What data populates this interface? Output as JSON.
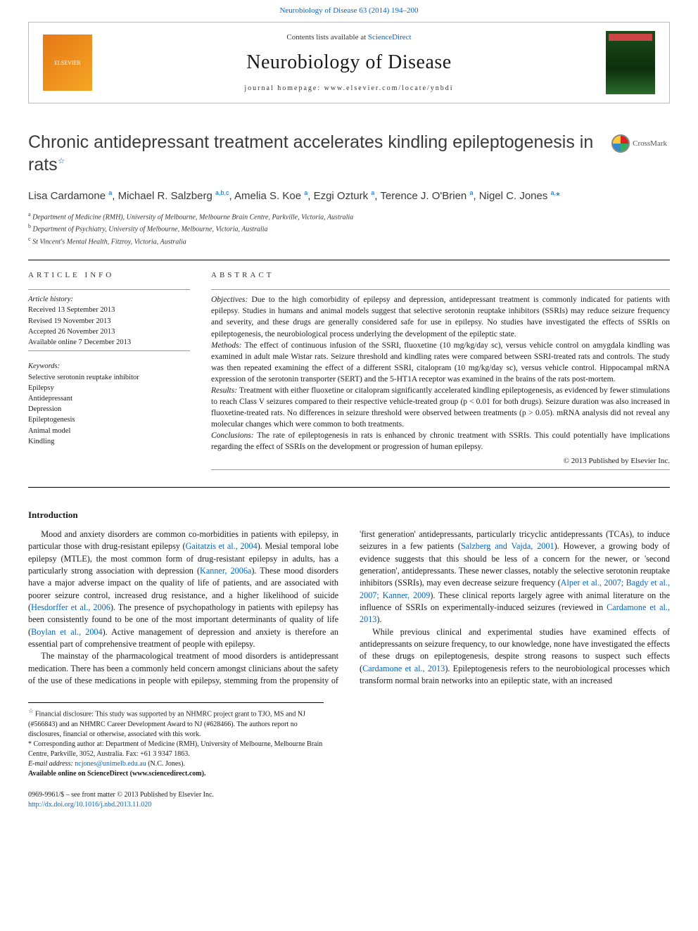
{
  "header": {
    "citation": "Neurobiology of Disease 63 (2014) 194–200",
    "contents_prefix": "Contents lists available at ",
    "contents_link": "ScienceDirect",
    "journal_name": "Neurobiology of Disease",
    "homepage_label": "journal homepage: www.elsevier.com/locate/ynbdi"
  },
  "title": "Chronic antidepressant treatment accelerates kindling epileptogenesis in rats",
  "title_note_marker": "☆",
  "crossmark_label": "CrossMark",
  "authors_html": "Lisa Cardamone <sup>a</sup>, Michael R. Salzberg <sup>a,b,c</sup>, Amelia S. Koe <sup>a</sup>, Ezgi Ozturk <sup>a</sup>, Terence J. O'Brien <sup>a</sup>, Nigel C. Jones <sup>a,</sup><span class='corr'>*</span>",
  "affiliations": [
    "a  Department of Medicine (RMH), University of Melbourne, Melbourne Brain Centre, Parkville, Victoria, Australia",
    "b  Department of Psychiatry, University of Melbourne, Melbourne, Victoria, Australia",
    "c  St Vincent's Mental Health, Fitzroy, Victoria, Australia"
  ],
  "article_info": {
    "label": "ARTICLE INFO",
    "history_label": "Article history:",
    "received": "Received 13 September 2013",
    "revised": "Revised 19 November 2013",
    "accepted": "Accepted 26 November 2013",
    "online": "Available online 7 December 2013",
    "keywords_label": "Keywords:",
    "keywords": [
      "Selective serotonin reuptake inhibitor",
      "Epilepsy",
      "Antidepressant",
      "Depression",
      "Epileptogenesis",
      "Animal model",
      "Kindling"
    ]
  },
  "abstract": {
    "label": "ABSTRACT",
    "objectives_label": "Objectives:",
    "objectives": "Due to the high comorbidity of epilepsy and depression, antidepressant treatment is commonly indicated for patients with epilepsy. Studies in humans and animal models suggest that selective serotonin reuptake inhibitors (SSRIs) may reduce seizure frequency and severity, and these drugs are generally considered safe for use in epilepsy. No studies have investigated the effects of SSRIs on epileptogenesis, the neurobiological process underlying the development of the epileptic state.",
    "methods_label": "Methods:",
    "methods": "The effect of continuous infusion of the SSRI, fluoxetine (10 mg/kg/day sc), versus vehicle control on amygdala kindling was examined in adult male Wistar rats. Seizure threshold and kindling rates were compared between SSRI-treated rats and controls. The study was then repeated examining the effect of a different SSRI, citalopram (10 mg/kg/day sc), versus vehicle control. Hippocampal mRNA expression of the serotonin transporter (SERT) and the 5-HT1A receptor was examined in the brains of the rats post-mortem.",
    "results_label": "Results:",
    "results": "Treatment with either fluoxetine or citalopram significantly accelerated kindling epileptogenesis, as evidenced by fewer stimulations to reach Class V seizures compared to their respective vehicle-treated group (p < 0.01 for both drugs). Seizure duration was also increased in fluoxetine-treated rats. No differences in seizure threshold were observed between treatments (p > 0.05). mRNA analysis did not reveal any molecular changes which were common to both treatments.",
    "conclusions_label": "Conclusions:",
    "conclusions": "The rate of epileptogenesis in rats is enhanced by chronic treatment with SSRIs. This could potentially have implications regarding the effect of SSRIs on the development or progression of human epilepsy.",
    "copyright": "© 2013 Published by Elsevier Inc."
  },
  "intro": {
    "heading": "Introduction",
    "p1_pre": "Mood and anxiety disorders are common co-morbidities in patients with epilepsy, in particular those with drug-resistant epilepsy (",
    "p1_link1": "Gaitatzis et al., 2004",
    "p1_mid1": "). Mesial temporal lobe epilepsy (MTLE), the most common form of drug-resistant epilepsy in adults, has a particularly strong association with depression (",
    "p1_link2": "Kanner, 2006a",
    "p1_mid2": "). These mood disorders have a major adverse impact on the quality of life of patients, and are associated with poorer seizure control, increased drug resistance, and a higher likelihood of suicide (",
    "p1_link3": "Hesdorffer et al., 2006",
    "p1_mid3": "). The presence of psychopathology in patients with epilepsy has been consistently found to be one of the most important determinants of quality of life (",
    "p1_link4": "Boylan et al., 2004",
    "p1_post": "). Active management of depression and anxiety is therefore an essential part of comprehensive treatment of people with epilepsy.",
    "p2_pre": "The mainstay of the pharmacological treatment of mood disorders is antidepressant medication. There has been a commonly held concern amongst clinicians about the safety of the use of these medications in people with epilepsy, stemming from the propensity of 'first generation' antidepressants, particularly tricyclic antidepressants (TCAs), to induce seizures in a few patients (",
    "p2_link1": "Salzberg and Vajda, 2001",
    "p2_mid1": "). However, a growing body of evidence suggests that this should be less of a concern for the newer, or 'second generation', antidepressants. These newer classes, notably the selective serotonin reuptake inhibitors (SSRIs), may even decrease seizure frequency (",
    "p2_link2": "Alper et al., 2007; Bagdy et al., 2007; Kanner, 2009",
    "p2_mid2": "). These clinical reports largely agree with animal literature on the influence of SSRIs on experimentally-induced seizures (reviewed in ",
    "p2_link3": "Cardamone et al., 2013",
    "p2_post": ").",
    "p3_pre": "While previous clinical and experimental studies have examined effects of antidepressants on seizure frequency, to our knowledge, none have investigated the effects of these drugs on epileptogenesis, despite strong reasons to suspect such effects (",
    "p3_link1": "Cardamone et al., 2013",
    "p3_post": "). Epileptogenesis refers to the neurobiological processes which transform normal brain networks into an epileptic state, with an increased"
  },
  "footnotes": {
    "funding_marker": "☆",
    "funding": "Financial disclosure: This study was supported by an NHMRC project grant to TJO, MS and NJ (#566843) and an NHMRC Career Development Award to NJ (#628466). The authors report no disclosures, financial or otherwise, associated with this work.",
    "corr_marker": "*",
    "corr": "Corresponding author at: Department of Medicine (RMH), University of Melbourne, Melbourne Brain Centre, Parkville, 3052, Australia. Fax: +61 3 9347 1863.",
    "email_label": "E-mail address: ",
    "email": "ncjones@unimelb.edu.au",
    "email_suffix": " (N.C. Jones).",
    "avail": "Available online on ScienceDirect (www.sciencedirect.com)."
  },
  "footer": {
    "front_matter": "0969-9961/$ – see front matter © 2013 Published by Elsevier Inc.",
    "doi": "http://dx.doi.org/10.1016/j.nbd.2013.11.020"
  },
  "colors": {
    "link": "#0066cc",
    "text": "#1a1a1a",
    "elsevier_orange": "#e67817"
  }
}
